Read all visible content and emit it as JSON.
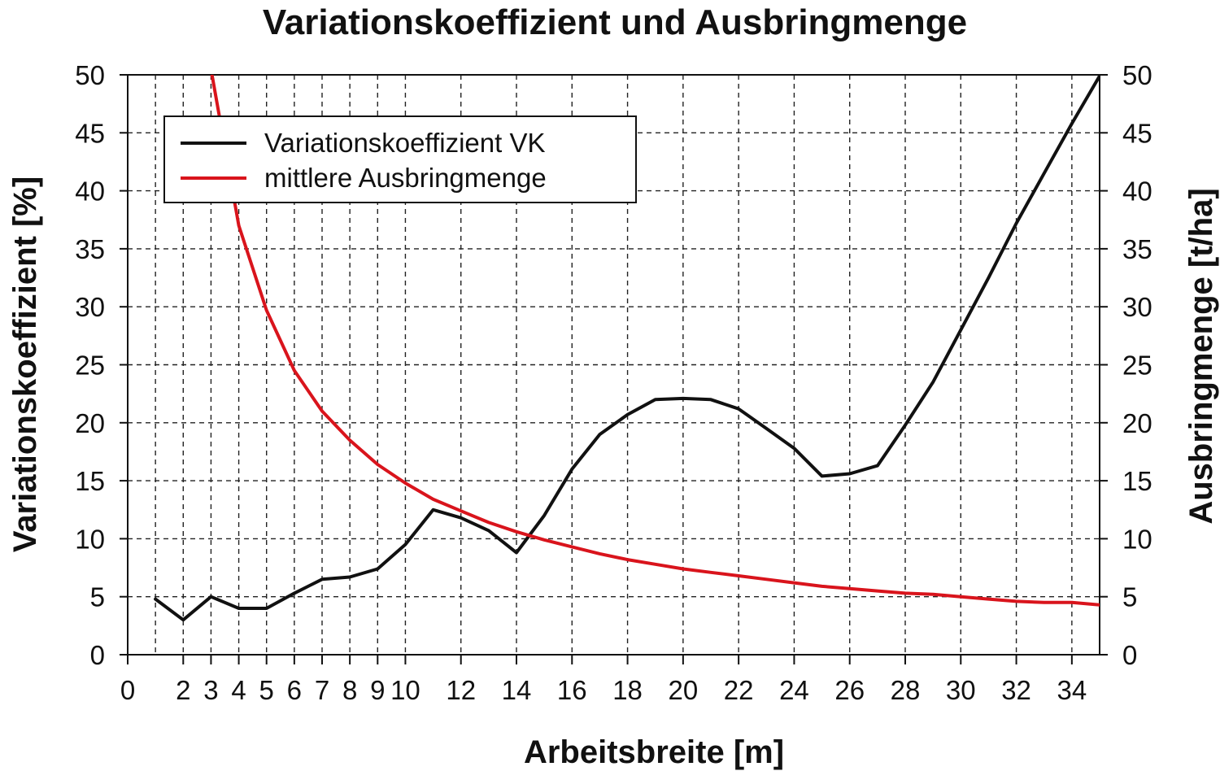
{
  "chart_data": {
    "type": "line",
    "title": "Variationskoeffizient und Ausbringmenge",
    "xlabel": "Arbeitsbreite [m]",
    "ylabel_left": "Variationskoeffizient [%]",
    "ylabel_right": "Ausbringmenge [t/ha]",
    "xlim": [
      0,
      35
    ],
    "ylim": [
      0,
      50
    ],
    "y_ticks": [
      0,
      5,
      10,
      15,
      20,
      25,
      30,
      35,
      40,
      45,
      50
    ],
    "x_tick_labels": [
      {
        "x": 0,
        "label": "0"
      },
      {
        "x": 2,
        "label": "2"
      },
      {
        "x": 3,
        "label": "3"
      },
      {
        "x": 4,
        "label": "4"
      },
      {
        "x": 5,
        "label": "5"
      },
      {
        "x": 6,
        "label": "6"
      },
      {
        "x": 7,
        "label": "7"
      },
      {
        "x": 8,
        "label": "8"
      },
      {
        "x": 9,
        "label": "9"
      },
      {
        "x": 10,
        "label": "10"
      },
      {
        "x": 12,
        "label": "12"
      },
      {
        "x": 14,
        "label": "14"
      },
      {
        "x": 16,
        "label": "16"
      },
      {
        "x": 18,
        "label": "18"
      },
      {
        "x": 20,
        "label": "20"
      },
      {
        "x": 22,
        "label": "22"
      },
      {
        "x": 24,
        "label": "24"
      },
      {
        "x": 26,
        "label": "26"
      },
      {
        "x": 28,
        "label": "28"
      },
      {
        "x": 30,
        "label": "30"
      },
      {
        "x": 32,
        "label": "32"
      },
      {
        "x": 34,
        "label": "34"
      }
    ],
    "x_grid": [
      1,
      2,
      3,
      4,
      5,
      6,
      7,
      8,
      9,
      10,
      12,
      14,
      16,
      18,
      20,
      22,
      24,
      26,
      28,
      30,
      32,
      34
    ],
    "grid": true,
    "legend_position": "top-left",
    "series": [
      {
        "name": "Variationskoeffizient VK",
        "color": "#111111",
        "axis": "left",
        "points": [
          [
            1,
            4.8
          ],
          [
            2,
            3.0
          ],
          [
            3,
            5.0
          ],
          [
            4,
            4.0
          ],
          [
            5,
            4.0
          ],
          [
            6,
            5.3
          ],
          [
            7,
            6.5
          ],
          [
            8,
            6.7
          ],
          [
            9,
            7.4
          ],
          [
            10,
            9.5
          ],
          [
            11,
            12.5
          ],
          [
            12,
            11.8
          ],
          [
            13,
            10.7
          ],
          [
            14,
            8.8
          ],
          [
            15,
            12.0
          ],
          [
            16,
            16.0
          ],
          [
            17,
            19.0
          ],
          [
            18,
            20.7
          ],
          [
            19,
            22.0
          ],
          [
            20,
            22.1
          ],
          [
            21,
            22.0
          ],
          [
            22,
            21.2
          ],
          [
            23,
            19.5
          ],
          [
            24,
            17.8
          ],
          [
            25,
            15.4
          ],
          [
            26,
            15.6
          ],
          [
            27,
            16.3
          ],
          [
            28,
            19.8
          ],
          [
            29,
            23.5
          ],
          [
            30,
            28.0
          ],
          [
            31,
            32.5
          ],
          [
            32,
            37.2
          ],
          [
            33,
            41.5
          ],
          [
            34,
            45.8
          ],
          [
            35,
            49.9
          ]
        ]
      },
      {
        "name": "mittlere Ausbringmenge",
        "color": "#d9141c",
        "axis": "right",
        "points": [
          [
            3,
            50.5
          ],
          [
            4,
            37.0
          ],
          [
            5,
            29.7
          ],
          [
            6,
            24.5
          ],
          [
            7,
            21.0
          ],
          [
            8,
            18.5
          ],
          [
            9,
            16.4
          ],
          [
            10,
            14.8
          ],
          [
            11,
            13.4
          ],
          [
            12,
            12.4
          ],
          [
            13,
            11.4
          ],
          [
            14,
            10.6
          ],
          [
            15,
            9.9
          ],
          [
            16,
            9.3
          ],
          [
            17,
            8.7
          ],
          [
            18,
            8.2
          ],
          [
            19,
            7.8
          ],
          [
            20,
            7.4
          ],
          [
            21,
            7.1
          ],
          [
            22,
            6.8
          ],
          [
            23,
            6.5
          ],
          [
            24,
            6.2
          ],
          [
            25,
            5.9
          ],
          [
            26,
            5.7
          ],
          [
            27,
            5.5
          ],
          [
            28,
            5.3
          ],
          [
            29,
            5.2
          ],
          [
            30,
            5.0
          ],
          [
            31,
            4.8
          ],
          [
            32,
            4.6
          ],
          [
            33,
            4.5
          ],
          [
            34,
            4.5
          ],
          [
            35,
            4.3
          ]
        ]
      }
    ]
  }
}
